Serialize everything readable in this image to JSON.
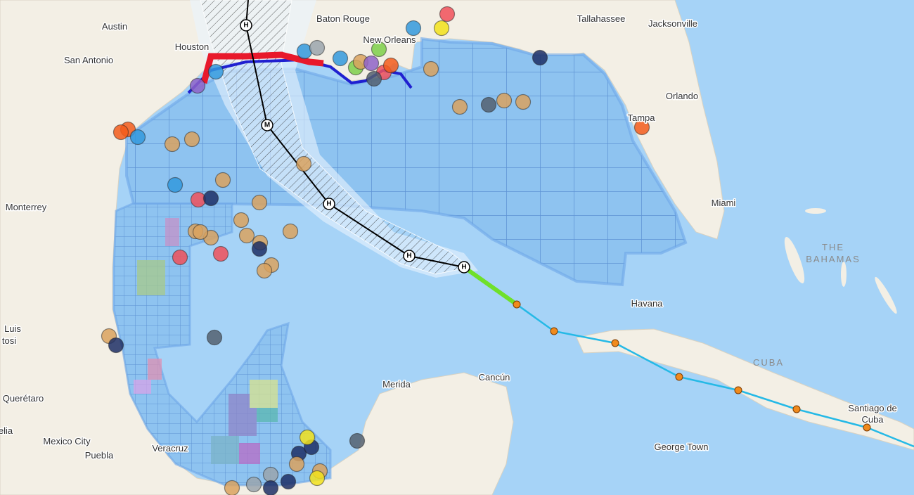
{
  "places": [
    {
      "name": "Austin"
    },
    {
      "name": "San Antonio"
    },
    {
      "name": "Houston"
    },
    {
      "name": "Baton Rouge"
    },
    {
      "name": "New Orleans"
    },
    {
      "name": "Tallahassee"
    },
    {
      "name": "Jacksonville"
    },
    {
      "name": "Orlando"
    },
    {
      "name": "Tampa"
    },
    {
      "name": "Miami"
    },
    {
      "name": "THE"
    },
    {
      "name": "BAHAMAS"
    },
    {
      "name": "Havana"
    },
    {
      "name": "CUBA"
    },
    {
      "name": "Santiago de"
    },
    {
      "name": "Cuba"
    },
    {
      "name": "George Town"
    },
    {
      "name": "Merida"
    },
    {
      "name": "Cancún"
    },
    {
      "name": "Monterrey"
    },
    {
      "name": "Luis"
    },
    {
      "name": "tosi"
    },
    {
      "name": "Querétaro"
    },
    {
      "name": "elia"
    },
    {
      "name": "Mexico City"
    },
    {
      "name": "Puebla"
    },
    {
      "name": "Veracruz"
    }
  ],
  "storm_track": {
    "points": [
      {
        "label": "H"
      },
      {
        "label": "M"
      },
      {
        "label": "H"
      },
      {
        "label": "H"
      },
      {
        "label": "H"
      }
    ]
  }
}
